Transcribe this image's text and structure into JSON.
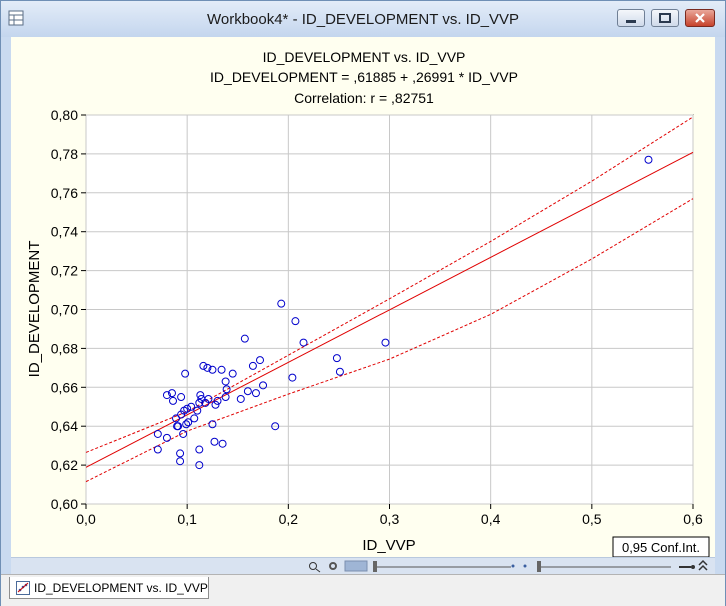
{
  "window": {
    "title": "Workbook4* - ID_DEVELOPMENT vs. ID_VVP",
    "tab_label": "ID_DEVELOPMENT vs. ID_VVP"
  },
  "legend_label": "0,95 Conf.Int.",
  "colors": {
    "points": "#0000cc",
    "regression": "#e00000",
    "plot_background": "#ffffff",
    "window_background": "#fffff0"
  },
  "chart_data": {
    "type": "scatter",
    "title": "ID_DEVELOPMENT vs. ID_VVP",
    "subtitle": "ID_DEVELOPMENT = ,61885 + ,26991 * ID_VVP",
    "subtitle2": "Correlation: r = ,82751",
    "xlabel": "ID_VVP",
    "ylabel": "ID_DEVELOPMENT",
    "xlim": [
      0,
      0.6
    ],
    "ylim": [
      0.6,
      0.8
    ],
    "grid": true,
    "xticks": [
      0,
      0.1,
      0.2,
      0.3,
      0.4,
      0.5,
      0.6
    ],
    "yticks": [
      0.6,
      0.62,
      0.64,
      0.66,
      0.68,
      0.7,
      0.72,
      0.74,
      0.76,
      0.78,
      0.8
    ],
    "xtick_labels": [
      "0,0",
      "0,1",
      "0,2",
      "0,3",
      "0,4",
      "0,5",
      "0,6"
    ],
    "ytick_labels": [
      "0,60",
      "0,62",
      "0,64",
      "0,66",
      "0,68",
      "0,70",
      "0,72",
      "0,74",
      "0,76",
      "0,78",
      "0,80"
    ],
    "regression": {
      "intercept": 0.61885,
      "slope": 0.26991
    },
    "confidence_band": {
      "upper": [
        [
          0,
          0.6265
        ],
        [
          0.1,
          0.6475
        ],
        [
          0.2,
          0.6765
        ],
        [
          0.3,
          0.7055
        ],
        [
          0.4,
          0.735
        ],
        [
          0.5,
          0.766
        ],
        [
          0.6,
          0.799
        ]
      ],
      "lower": [
        [
          0,
          0.6115
        ],
        [
          0.1,
          0.6375
        ],
        [
          0.2,
          0.6565
        ],
        [
          0.3,
          0.6745
        ],
        [
          0.4,
          0.6975
        ],
        [
          0.5,
          0.726
        ],
        [
          0.6,
          0.757
        ]
      ]
    },
    "points": [
      [
        0.071,
        0.628
      ],
      [
        0.071,
        0.636
      ],
      [
        0.08,
        0.634
      ],
      [
        0.08,
        0.656
      ],
      [
        0.085,
        0.657
      ],
      [
        0.086,
        0.653
      ],
      [
        0.089,
        0.644
      ],
      [
        0.09,
        0.64
      ],
      [
        0.091,
        0.64
      ],
      [
        0.093,
        0.626
      ],
      [
        0.093,
        0.622
      ],
      [
        0.094,
        0.646
      ],
      [
        0.094,
        0.655
      ],
      [
        0.096,
        0.636
      ],
      [
        0.097,
        0.648
      ],
      [
        0.098,
        0.667
      ],
      [
        0.099,
        0.641
      ],
      [
        0.1,
        0.649
      ],
      [
        0.101,
        0.642
      ],
      [
        0.104,
        0.65
      ],
      [
        0.107,
        0.644
      ],
      [
        0.11,
        0.648
      ],
      [
        0.112,
        0.62
      ],
      [
        0.112,
        0.628
      ],
      [
        0.112,
        0.652
      ],
      [
        0.113,
        0.656
      ],
      [
        0.114,
        0.654
      ],
      [
        0.116,
        0.671
      ],
      [
        0.118,
        0.652
      ],
      [
        0.12,
        0.67
      ],
      [
        0.121,
        0.654
      ],
      [
        0.125,
        0.641
      ],
      [
        0.125,
        0.669
      ],
      [
        0.127,
        0.632
      ],
      [
        0.128,
        0.651
      ],
      [
        0.13,
        0.653
      ],
      [
        0.134,
        0.669
      ],
      [
        0.135,
        0.631
      ],
      [
        0.138,
        0.655
      ],
      [
        0.138,
        0.663
      ],
      [
        0.139,
        0.659
      ],
      [
        0.145,
        0.667
      ],
      [
        0.153,
        0.654
      ],
      [
        0.157,
        0.685
      ],
      [
        0.16,
        0.658
      ],
      [
        0.165,
        0.671
      ],
      [
        0.168,
        0.657
      ],
      [
        0.172,
        0.674
      ],
      [
        0.175,
        0.661
      ],
      [
        0.187,
        0.64
      ],
      [
        0.193,
        0.703
      ],
      [
        0.204,
        0.665
      ],
      [
        0.207,
        0.694
      ],
      [
        0.215,
        0.683
      ],
      [
        0.248,
        0.675
      ],
      [
        0.251,
        0.668
      ],
      [
        0.296,
        0.683
      ],
      [
        0.556,
        0.777
      ]
    ]
  }
}
